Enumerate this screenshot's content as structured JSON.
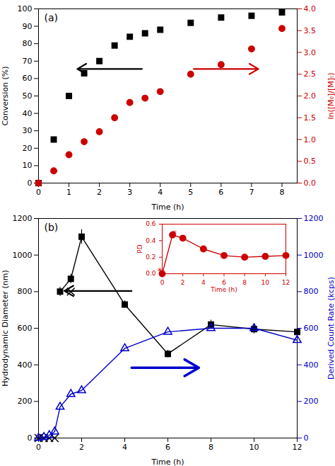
{
  "chart_data": [
    {
      "type": "scatter",
      "xlabel": "Time (h)",
      "ylabel": "Conversion (%)",
      "y2label": "ln([M₀]/[M]ₜ)",
      "xlim": [
        0,
        8.5
      ],
      "xticks": [
        0,
        1,
        2,
        3,
        4,
        5,
        6,
        7,
        8
      ],
      "ylim": [
        0,
        100
      ],
      "yticks": [
        0,
        10,
        20,
        30,
        40,
        50,
        60,
        70,
        80,
        90,
        100
      ],
      "y2lim": [
        0,
        4
      ],
      "y2ticks": [
        {
          "value": 0,
          "label": "0.0"
        },
        0.5,
        {
          "value": 1,
          "label": "1.0"
        },
        1.5,
        {
          "value": 2,
          "label": "2.0"
        },
        2.5,
        {
          "value": 3,
          "label": "3.0"
        },
        3.5,
        {
          "value": 4,
          "label": "4.0"
        }
      ],
      "grid": false,
      "series": [
        {
          "x": [
            0,
            0.5,
            1.0,
            1.5,
            2.0,
            2.5,
            3.0,
            3.5,
            4.0,
            5.0,
            6.0,
            7.0,
            8.0
          ],
          "values": [
            0,
            25,
            50,
            63,
            70,
            79,
            84,
            86,
            88,
            92,
            95,
            96,
            98
          ],
          "color": "#000000",
          "marker": "square"
        },
        {
          "x": [
            0,
            0.5,
            1.0,
            1.5,
            2.0,
            2.5,
            3.0,
            3.5,
            4.0,
            5.0,
            6.0,
            7.0,
            8.0
          ],
          "values": [
            0.0,
            0.28,
            0.65,
            0.95,
            1.18,
            1.5,
            1.85,
            1.95,
            2.1,
            2.5,
            2.72,
            3.08,
            3.55
          ],
          "color": "#cc0000",
          "marker": "circle",
          "axis": "y2"
        }
      ],
      "annotations": [
        "(a)"
      ]
    },
    {
      "type": "line",
      "xlabel": "Time (h)",
      "ylabel": "Hydrodynamic Diameter (nm)",
      "y2label": "Derived Count Rate (kcps)",
      "xlim": [
        0,
        12
      ],
      "xticks": [
        0,
        2,
        4,
        6,
        8,
        10,
        12
      ],
      "ylim": [
        0,
        1200
      ],
      "yticks": [
        0,
        200,
        400,
        600,
        800,
        1000,
        1200
      ],
      "y2lim": [
        0,
        1200
      ],
      "y2ticks": [
        0,
        200,
        400,
        600,
        800,
        1000,
        1200
      ],
      "grid": false,
      "series": [
        {
          "x": [
            1.0,
            1.5,
            2.0,
            4.0,
            6.0,
            8.0,
            10.0,
            12.0
          ],
          "values": [
            800,
            870,
            1100,
            730,
            460,
            620,
            595,
            580
          ],
          "errors": [
            25,
            25,
            40,
            20,
            20,
            25,
            25,
            35
          ],
          "color": "#000000",
          "marker": "square",
          "line_style": "solid"
        },
        {
          "x": [
            0,
            0.25,
            0.5,
            0.75,
            1.5
          ],
          "values": [
            0,
            0,
            0,
            0,
            800
          ],
          "color": "#000000",
          "marker": "x",
          "type": "scatter"
        },
        {
          "x": [
            0,
            0.25,
            0.5,
            0.75,
            1.0,
            1.5,
            2.0,
            4.0,
            6.0,
            8.0,
            10.0,
            12.0
          ],
          "values": [
            0,
            5,
            15,
            35,
            170,
            240,
            260,
            490,
            580,
            600,
            600,
            535
          ],
          "color": "#0000cc",
          "marker": "open_triangle",
          "line_style": "solid",
          "axis": "y2"
        }
      ],
      "annotations": [
        "(b)"
      ]
    },
    {
      "type": "line",
      "xlabel": "Time (h)",
      "ylabel": "PD",
      "xlim": [
        0,
        12
      ],
      "xticks": [
        0,
        2,
        4,
        6,
        8,
        10,
        12
      ],
      "ylim": [
        0,
        0.6
      ],
      "yticks": [
        {
          "value": 0,
          "label": "0.0"
        },
        0.2,
        0.4,
        0.6
      ],
      "grid": false,
      "series": [
        {
          "x": [
            0,
            1,
            2,
            4,
            6,
            8,
            10,
            12
          ],
          "values": [
            0.0,
            0.47,
            0.43,
            0.3,
            0.22,
            0.2,
            0.21,
            0.22
          ],
          "errors": [
            0,
            0.04,
            0.03,
            0.03,
            0.02,
            0.02,
            0.02,
            0.03
          ],
          "color": "#cc0000",
          "marker": "circle",
          "line_style": "solid"
        }
      ],
      "annotations": [
        "*",
        "*"
      ]
    }
  ]
}
